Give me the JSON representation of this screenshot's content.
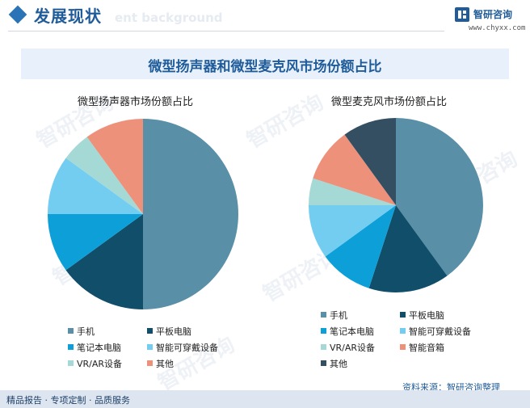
{
  "header": {
    "title": "发展现状",
    "ghost_text": "ent background",
    "logo_name": "智研咨询",
    "logo_url": "www.chyxx.com"
  },
  "banner": {
    "title": "微型扬声器和微型麦克风市场份额占比"
  },
  "footer": {
    "left": "精品报告 · 专项定制 · 品质服务",
    "source": "资料来源：智研咨询整理"
  },
  "watermark": "智研咨询",
  "chart_data": [
    {
      "type": "pie",
      "title": "微型扬声器市场份额占比",
      "labels": [
        "手机",
        "平板电脑",
        "笔记本电脑",
        "智能可穿戴设备",
        "VR/AR设备",
        "其他"
      ],
      "values": [
        50,
        15,
        10,
        10,
        5,
        10
      ],
      "colors": [
        "#5a8fa8",
        "#114e6a",
        "#0da0d8",
        "#72cdf0",
        "#a4d9d6",
        "#ee917b"
      ]
    },
    {
      "type": "pie",
      "title": "微型麦克风市场份额占比",
      "labels": [
        "手机",
        "平板电脑",
        "笔记本电脑",
        "智能可穿戴设备",
        "VR/AR设备",
        "智能音箱",
        "其他"
      ],
      "values": [
        40,
        15,
        10,
        10,
        5,
        10,
        10
      ],
      "colors": [
        "#5a8fa8",
        "#114e6a",
        "#0da0d8",
        "#72cdf0",
        "#a4d9d6",
        "#ee917b",
        "#344f61"
      ]
    }
  ]
}
